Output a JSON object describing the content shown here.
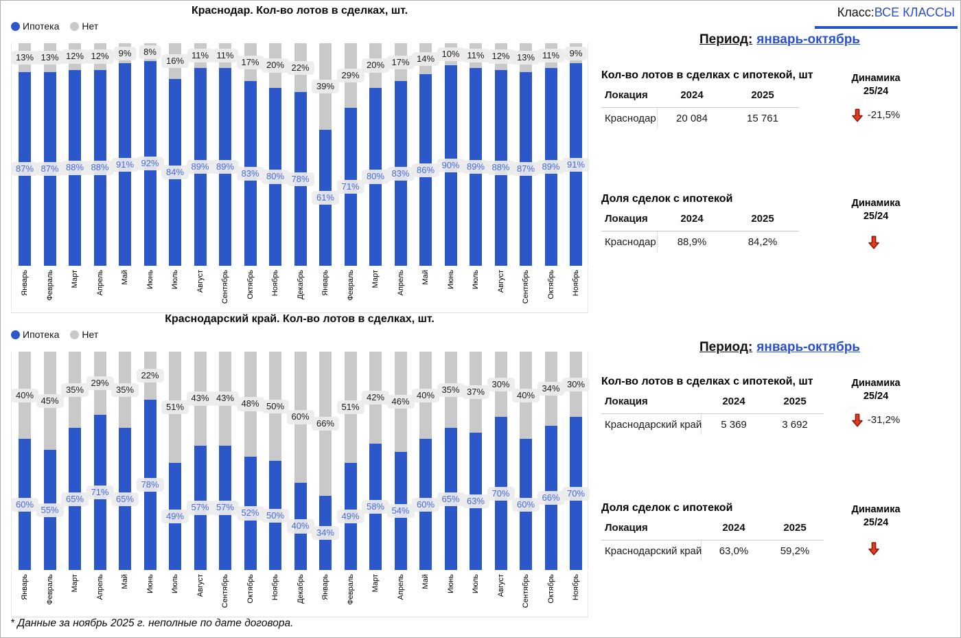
{
  "header": {
    "class_label": "Класс:",
    "class_value": "ВСЕ КЛАССЫ"
  },
  "footnote": "* Данные за ноябрь 2025 г. неполные по дате договора.",
  "colors": {
    "mortgage_blue": "#2b57c8",
    "no_mortgage_gray": "#c9c9c9",
    "link_blue": "#2750d6",
    "negative_red": "#df3a20",
    "label_pill_bg": "#ececec",
    "pill_text_blue": "#4a6bd6"
  },
  "chart_data": [
    {
      "type": "bar",
      "stacked": true,
      "unit": "%",
      "ylim": [
        0,
        100
      ],
      "grid": false,
      "legend_position": "top-left",
      "title": "Краснодар. Кол-во лотов в сделках, шт.",
      "categories": [
        "Январь",
        "Февраль",
        "Март",
        "Апрель",
        "Май",
        "Июнь",
        "Июль",
        "Август",
        "Сентябрь",
        "Октябрь",
        "Ноябрь",
        "Декабрь",
        "Январь",
        "Февраль",
        "Март",
        "Апрель",
        "Май",
        "Июнь",
        "Июль",
        "Август",
        "Сентябрь",
        "Октябрь",
        "Ноябрь"
      ],
      "series": [
        {
          "name": "Ипотека",
          "color": "#2b57c8",
          "values": [
            87,
            87,
            88,
            88,
            91,
            92,
            84,
            89,
            89,
            83,
            80,
            78,
            61,
            71,
            80,
            83,
            86,
            90,
            89,
            88,
            87,
            89,
            91
          ]
        },
        {
          "name": "Нет",
          "color": "#c9c9c9",
          "values": [
            13,
            13,
            12,
            12,
            9,
            8,
            16,
            11,
            11,
            17,
            20,
            22,
            39,
            29,
            20,
            17,
            14,
            10,
            11,
            12,
            13,
            11,
            9
          ]
        }
      ]
    },
    {
      "type": "bar",
      "stacked": true,
      "unit": "%",
      "ylim": [
        0,
        100
      ],
      "grid": false,
      "legend_position": "top-left",
      "title": "Краснодарский край. Кол-во лотов в сделках, шт.",
      "categories": [
        "Январь",
        "Февраль",
        "Март",
        "Апрель",
        "Май",
        "Июнь",
        "Июль",
        "Август",
        "Сентябрь",
        "Октябрь",
        "Ноябрь",
        "Декабрь",
        "Январь",
        "Февраль",
        "Март",
        "Апрель",
        "Май",
        "Июнь",
        "Июль",
        "Август",
        "Сентябрь",
        "Октябрь",
        "Ноябрь"
      ],
      "series": [
        {
          "name": "Ипотека",
          "color": "#2b57c8",
          "values": [
            60,
            55,
            65,
            71,
            65,
            78,
            49,
            57,
            57,
            52,
            50,
            40,
            34,
            49,
            58,
            54,
            60,
            65,
            63,
            70,
            60,
            66,
            70
          ]
        },
        {
          "name": "Нет",
          "color": "#c9c9c9",
          "values": [
            40,
            45,
            35,
            29,
            35,
            22,
            51,
            43,
            43,
            48,
            50,
            60,
            66,
            51,
            42,
            46,
            40,
            35,
            37,
            30,
            40,
            34,
            30
          ]
        }
      ]
    }
  ],
  "panels": [
    {
      "period_label": "Период:",
      "period_value": "январь-октябрь",
      "tables": [
        {
          "title": "Кол-во лотов в сделках с ипотекой, шт",
          "columns": [
            "Локация",
            "2024",
            "2025"
          ],
          "rows": [
            [
              "Краснодар",
              "20 084",
              "15 761"
            ]
          ],
          "dynamics_label": "Динамика",
          "dynamics_sublabel": "25/24",
          "dynamics_value": "-21,5%",
          "dynamics_direction": "down"
        },
        {
          "title": "Доля сделок с ипотекой",
          "columns": [
            "Локация",
            "2024",
            "2025"
          ],
          "rows": [
            [
              "Краснодар",
              "88,9%",
              "84,2%"
            ]
          ],
          "dynamics_label": "Динамика",
          "dynamics_sublabel": "25/24",
          "dynamics_value": "",
          "dynamics_direction": "down"
        }
      ]
    },
    {
      "period_label": "Период:",
      "period_value": "январь-октябрь",
      "tables": [
        {
          "title": "Кол-во лотов в сделках с ипотекой, шт",
          "columns": [
            "Локация",
            "2024",
            "2025"
          ],
          "rows": [
            [
              "Краснодарский край",
              "5 369",
              "3 692"
            ]
          ],
          "dynamics_label": "Динамика",
          "dynamics_sublabel": "25/24",
          "dynamics_value": "-31,2%",
          "dynamics_direction": "down"
        },
        {
          "title": "Доля сделок с ипотекой",
          "columns": [
            "Локация",
            "2024",
            "2025"
          ],
          "rows": [
            [
              "Краснодарский край",
              "63,0%",
              "59,2%"
            ]
          ],
          "dynamics_label": "Динамика",
          "dynamics_sublabel": "25/24",
          "dynamics_value": "",
          "dynamics_direction": "down"
        }
      ]
    }
  ]
}
